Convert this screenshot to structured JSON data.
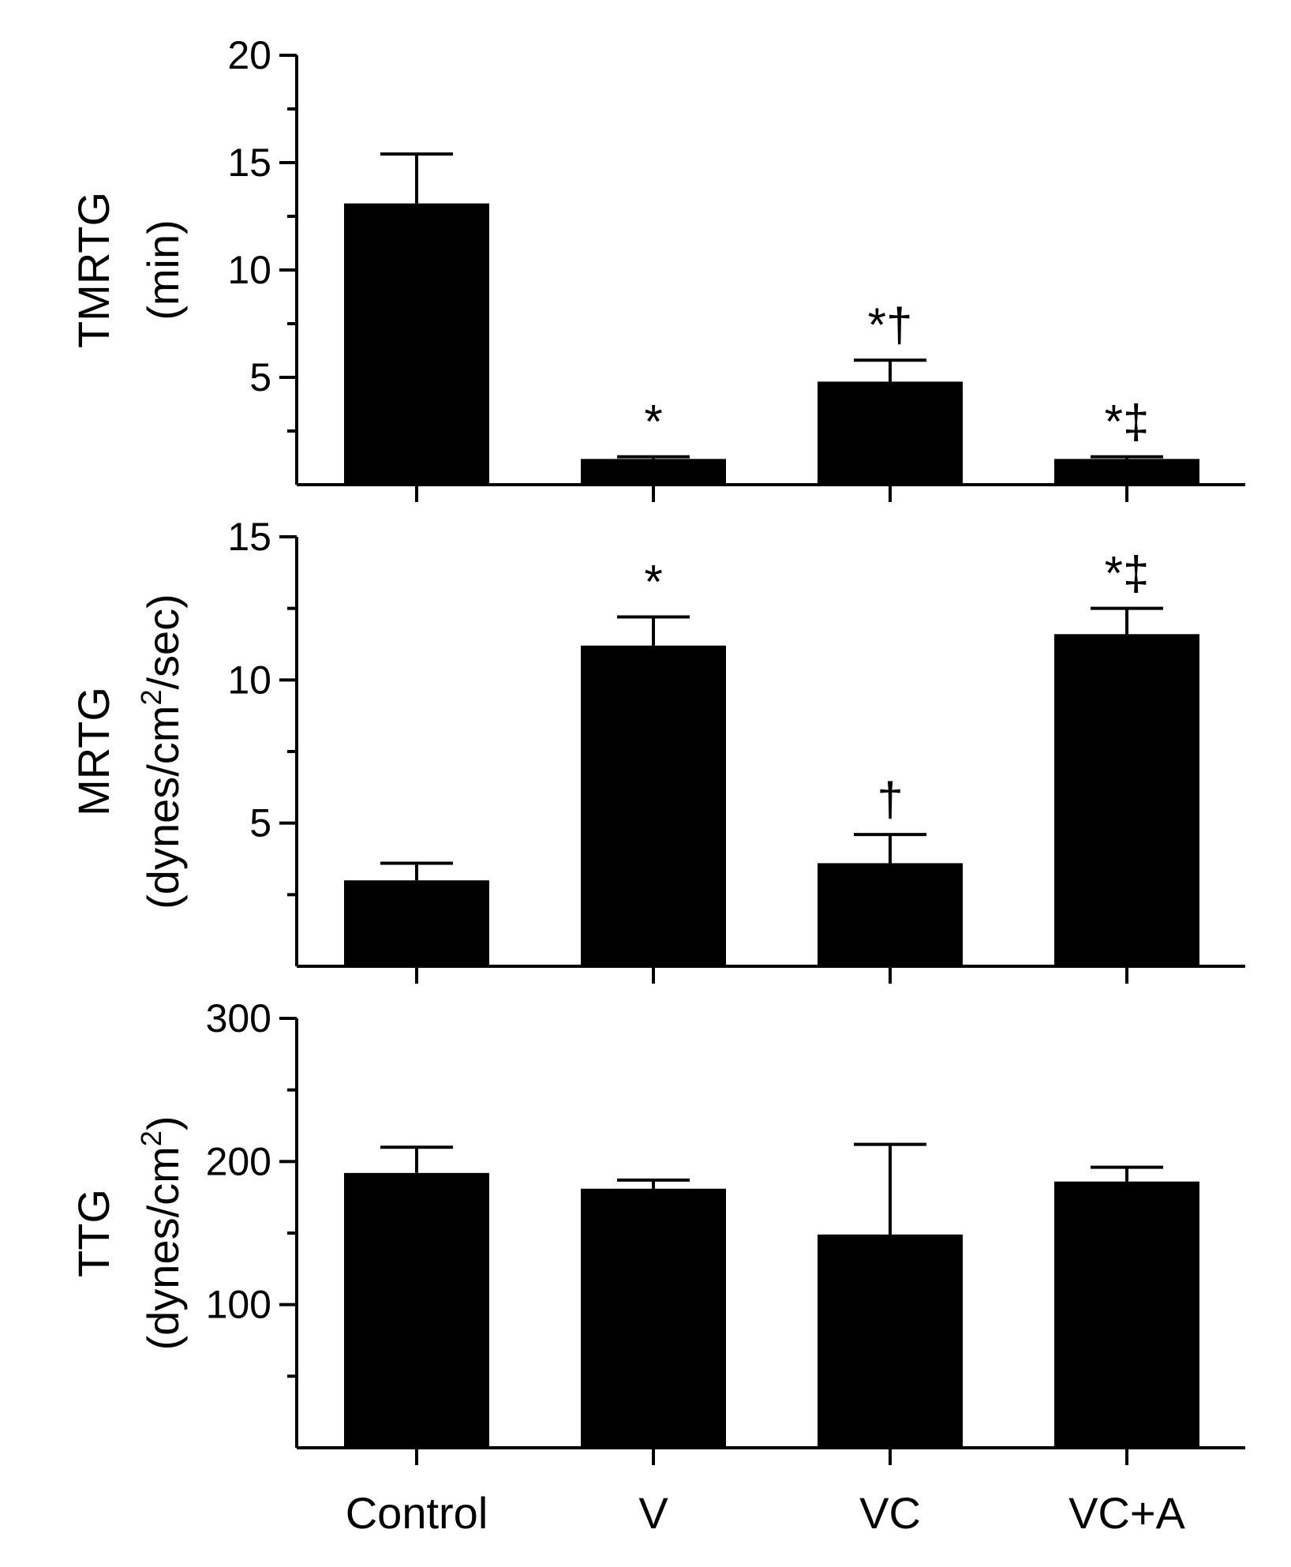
{
  "chart_data": [
    {
      "type": "bar",
      "categories": [
        "Control",
        "V",
        "VC",
        "VC+A"
      ],
      "values": [
        13.1,
        1.2,
        4.8,
        1.2
      ],
      "errors": [
        2.3,
        0.1,
        1.0,
        0.1
      ],
      "annotations": [
        "",
        "*",
        "*†",
        "*‡"
      ],
      "ylim": [
        0,
        20
      ],
      "yticks": [
        5,
        10,
        15,
        20
      ],
      "ylabel": "TMRTG",
      "ylabel2": "(min)",
      "ylabel2_sup": "",
      "ylabel2_tail": ""
    },
    {
      "type": "bar",
      "categories": [
        "Control",
        "V",
        "VC",
        "VC+A"
      ],
      "values": [
        3.0,
        11.2,
        3.6,
        11.6
      ],
      "errors": [
        0.6,
        1.0,
        1.0,
        0.9
      ],
      "annotations": [
        "",
        "*",
        "†",
        "*‡"
      ],
      "ylim": [
        0,
        15
      ],
      "yticks": [
        5,
        10,
        15
      ],
      "ylabel": "MRTG",
      "ylabel2": "(dynes/cm",
      "ylabel2_sup": "2",
      "ylabel2_tail": "/sec)"
    },
    {
      "type": "bar",
      "categories": [
        "Control",
        "V",
        "VC",
        "VC+A"
      ],
      "values": [
        192,
        181,
        149,
        186
      ],
      "errors": [
        18,
        6,
        63,
        10
      ],
      "annotations": [
        "",
        "",
        "",
        ""
      ],
      "ylim": [
        0,
        300
      ],
      "yticks": [
        100,
        200,
        300
      ],
      "ylabel": "TTG",
      "ylabel2": "(dynes/cm",
      "ylabel2_sup": "2",
      "ylabel2_tail": ")"
    }
  ]
}
